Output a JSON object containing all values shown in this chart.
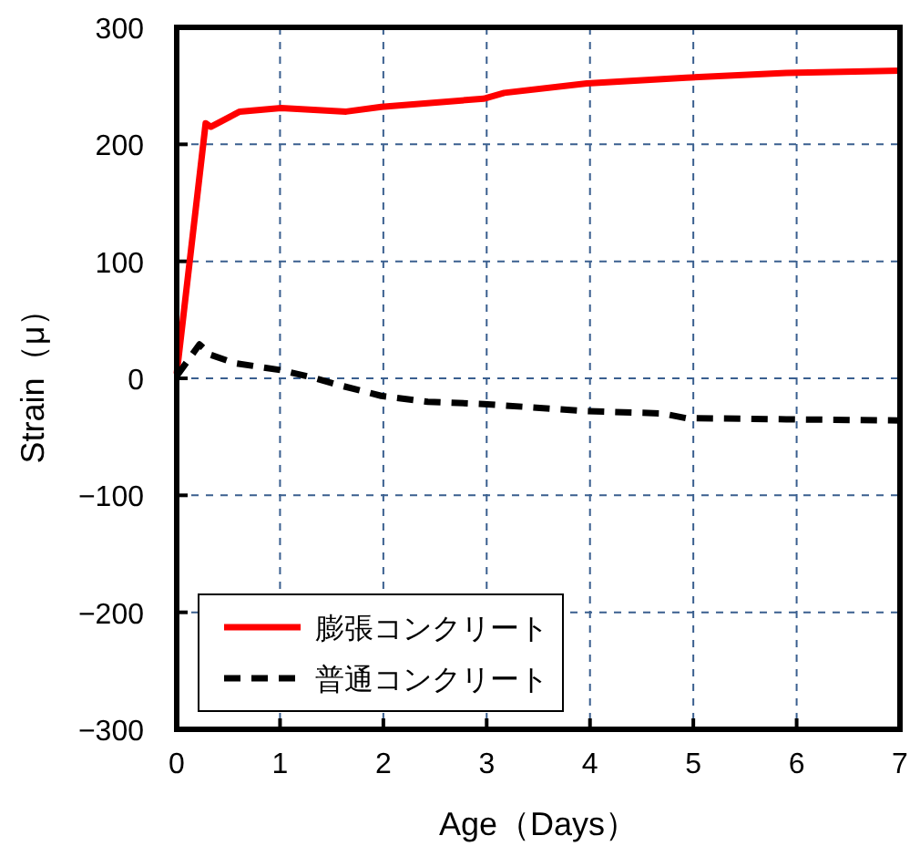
{
  "chart_data": {
    "type": "line",
    "xlabel": "Age（Days）",
    "ylabel": "Strain（μ）",
    "xlim": [
      0,
      7
    ],
    "ylim": [
      -300,
      300
    ],
    "xticks": [
      0,
      1,
      2,
      3,
      4,
      5,
      6,
      7
    ],
    "yticks": [
      {
        "value": -300,
        "label": "−300"
      },
      {
        "value": -200,
        "label": "−200"
      },
      {
        "value": -100,
        "label": "−100"
      },
      0,
      100,
      200,
      300
    ],
    "grid": true,
    "legend": "bottom left",
    "series": [
      {
        "name": "膨張コンクリート",
        "color": "#ff0000",
        "line_style": "solid",
        "x": [
          0,
          0.28,
          0.33,
          0.61,
          1.01,
          1.64,
          1.98,
          2.97,
          3.17,
          3.97,
          4.93,
          5.9,
          7
        ],
        "values": [
          4,
          218,
          215,
          228,
          231,
          228,
          232,
          239,
          244,
          252,
          257,
          261,
          263
        ]
      },
      {
        "name": "普通コンクリート",
        "color": "#000000",
        "line_style": "dashed",
        "x": [
          0,
          0.22,
          0.33,
          0.56,
          1.01,
          1.3,
          1.58,
          1.98,
          2.43,
          2.97,
          3.97,
          4.7,
          4.93,
          5.9,
          7
        ],
        "values": [
          2,
          29,
          20,
          13,
          7,
          1,
          -6,
          -15,
          -20,
          -22,
          -28,
          -30,
          -34,
          -35,
          -36
        ]
      }
    ]
  }
}
